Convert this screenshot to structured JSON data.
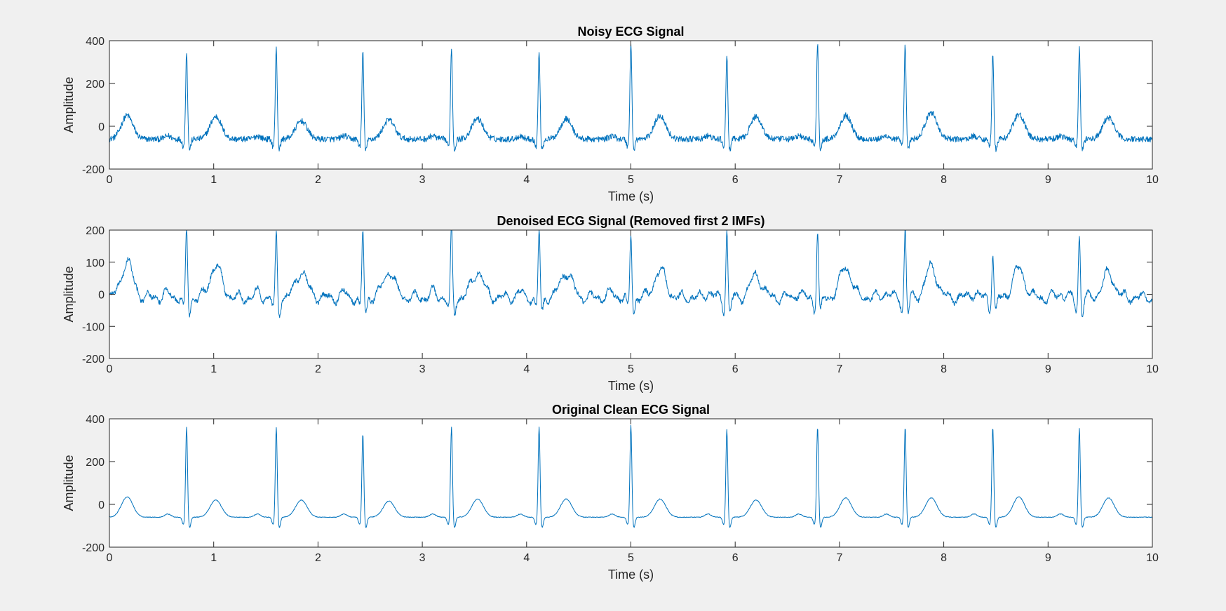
{
  "figure": {
    "background": "#f0f0f0",
    "line_color": "#0072bd",
    "axes_color": "#262626"
  },
  "chart_data": [
    {
      "type": "line",
      "title": "Noisy ECG Signal",
      "xlabel": "Time (s)",
      "ylabel": "Amplitude",
      "xlim": [
        0,
        10
      ],
      "ylim": [
        -200,
        400
      ],
      "xticks": [
        0,
        1,
        2,
        3,
        4,
        5,
        6,
        7,
        8,
        9,
        10
      ],
      "yticks": [
        -200,
        0,
        200,
        400
      ],
      "grid": false,
      "noise_level": "high",
      "beats": [
        {
          "t": 0.74,
          "r": 355
        },
        {
          "t": 1.6,
          "r": 372
        },
        {
          "t": 2.43,
          "r": 350
        },
        {
          "t": 3.28,
          "r": 372
        },
        {
          "t": 4.12,
          "r": 355
        },
        {
          "t": 5.0,
          "r": 398
        },
        {
          "t": 5.92,
          "r": 335
        },
        {
          "t": 6.79,
          "r": 392
        },
        {
          "t": 7.63,
          "r": 385
        },
        {
          "t": 8.47,
          "r": 355
        },
        {
          "t": 9.3,
          "r": 372
        }
      ],
      "t_waves": [
        {
          "t": 0.17,
          "a": 50
        },
        {
          "t": 1.02,
          "a": 45
        },
        {
          "t": 1.84,
          "a": 25
        },
        {
          "t": 2.68,
          "a": 30
        },
        {
          "t": 3.53,
          "a": 35
        },
        {
          "t": 4.38,
          "a": 35
        },
        {
          "t": 5.28,
          "a": 50
        },
        {
          "t": 6.2,
          "a": 45
        },
        {
          "t": 7.06,
          "a": 50
        },
        {
          "t": 7.88,
          "a": 65
        },
        {
          "t": 8.72,
          "a": 55
        },
        {
          "t": 9.58,
          "a": 40
        }
      ]
    },
    {
      "type": "line",
      "title": "Denoised ECG Signal (Removed first 2 IMFs)",
      "xlabel": "Time (s)",
      "ylabel": "Amplitude",
      "xlim": [
        0,
        10
      ],
      "ylim": [
        -200,
        200
      ],
      "xticks": [
        0,
        1,
        2,
        3,
        4,
        5,
        6,
        7,
        8,
        9,
        10
      ],
      "yticks": [
        -200,
        -100,
        0,
        100,
        200
      ],
      "grid": false,
      "noise_level": "medium",
      "beats": [
        {
          "t": 0.74,
          "r": 215
        },
        {
          "t": 1.6,
          "r": 200
        },
        {
          "t": 2.43,
          "r": 212
        },
        {
          "t": 3.28,
          "r": 225
        },
        {
          "t": 4.12,
          "r": 212
        },
        {
          "t": 5.0,
          "r": 205
        },
        {
          "t": 5.92,
          "r": 212
        },
        {
          "t": 6.79,
          "r": 210
        },
        {
          "t": 7.63,
          "r": 220
        },
        {
          "t": 8.47,
          "r": 145
        },
        {
          "t": 9.3,
          "r": 205
        }
      ],
      "t_waves": [
        {
          "t": 0.17,
          "a": 100
        },
        {
          "t": 1.02,
          "a": 90
        },
        {
          "t": 1.84,
          "a": 70
        },
        {
          "t": 2.68,
          "a": 70
        },
        {
          "t": 3.53,
          "a": 70
        },
        {
          "t": 4.38,
          "a": 70
        },
        {
          "t": 5.28,
          "a": 75
        },
        {
          "t": 6.2,
          "a": 60
        },
        {
          "t": 7.06,
          "a": 85
        },
        {
          "t": 7.88,
          "a": 85
        },
        {
          "t": 8.72,
          "a": 80
        },
        {
          "t": 9.58,
          "a": 65
        }
      ]
    },
    {
      "type": "line",
      "title": "Original Clean ECG Signal",
      "xlabel": "Time (s)",
      "ylabel": "Amplitude",
      "xlim": [
        0,
        10
      ],
      "ylim": [
        -200,
        400
      ],
      "xticks": [
        0,
        1,
        2,
        3,
        4,
        5,
        6,
        7,
        8,
        9,
        10
      ],
      "yticks": [
        -200,
        0,
        200,
        400
      ],
      "grid": false,
      "noise_level": "low",
      "beats": [
        {
          "t": 0.74,
          "r": 365
        },
        {
          "t": 1.6,
          "r": 365
        },
        {
          "t": 2.43,
          "r": 335
        },
        {
          "t": 3.28,
          "r": 365
        },
        {
          "t": 4.12,
          "r": 365
        },
        {
          "t": 5.0,
          "r": 375
        },
        {
          "t": 5.92,
          "r": 355
        },
        {
          "t": 6.79,
          "r": 365
        },
        {
          "t": 7.63,
          "r": 365
        },
        {
          "t": 8.47,
          "r": 365
        },
        {
          "t": 9.3,
          "r": 360
        }
      ],
      "t_waves": [
        {
          "t": 0.17,
          "a": 35
        },
        {
          "t": 1.02,
          "a": 20
        },
        {
          "t": 1.84,
          "a": 20
        },
        {
          "t": 2.68,
          "a": 15
        },
        {
          "t": 3.53,
          "a": 25
        },
        {
          "t": 4.38,
          "a": 25
        },
        {
          "t": 5.28,
          "a": 25
        },
        {
          "t": 6.2,
          "a": 20
        },
        {
          "t": 7.06,
          "a": 30
        },
        {
          "t": 7.88,
          "a": 30
        },
        {
          "t": 8.72,
          "a": 35
        },
        {
          "t": 9.58,
          "a": 30
        }
      ]
    }
  ]
}
